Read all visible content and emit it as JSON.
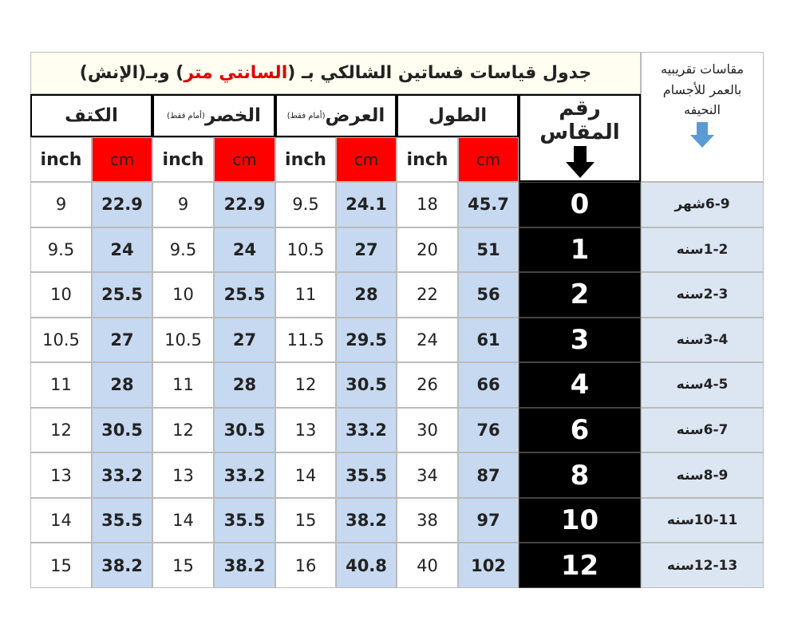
{
  "title": {
    "before": "جدول قياسات فساتين الشالكي بـ (",
    "highlight": "السانتي متر",
    "after": " ) وبـ(الإنش)"
  },
  "age_header": "مقاسات تقريبيه بالعمر للأجسام النحيفه",
  "size_header": "رقم المقاس",
  "groups": [
    {
      "name": "الطول"
    },
    {
      "name": "العرض",
      "note": "(أمام فقط)"
    },
    {
      "name": "الخصر",
      "note": "(أمام فقط)"
    },
    {
      "name": "الكتف"
    }
  ],
  "units": {
    "cm": "cm",
    "inch": "inch"
  },
  "rows": [
    [
      "6-9شهر",
      0,
      45.7,
      18,
      24.1,
      9.5,
      22.9,
      9,
      22.9,
      9
    ],
    [
      "1-2سنه",
      1,
      51,
      20,
      27,
      10.5,
      24,
      9.5,
      24,
      9.5
    ],
    [
      "2-3سنه",
      2,
      56,
      22,
      28,
      11,
      25.5,
      10,
      25.5,
      10
    ],
    [
      "3-4سنه",
      3,
      61,
      24,
      29.5,
      11.5,
      27,
      10.5,
      27,
      10.5
    ],
    [
      "4-5سنه",
      4,
      66,
      26,
      30.5,
      12,
      28,
      11,
      28,
      11
    ],
    [
      "6-7سنه",
      6,
      76,
      30,
      33.2,
      13,
      30.5,
      12,
      30.5,
      12
    ],
    [
      "8-9سنه",
      8,
      87,
      34,
      35.5,
      14,
      33.2,
      13,
      33.2,
      13
    ],
    [
      "10-11سنه",
      10,
      97,
      38,
      38.2,
      15,
      35.5,
      14,
      35.5,
      14
    ],
    [
      "12-13سنه",
      12,
      102,
      40,
      40.8,
      16,
      38.2,
      15,
      38.2,
      15
    ]
  ]
}
